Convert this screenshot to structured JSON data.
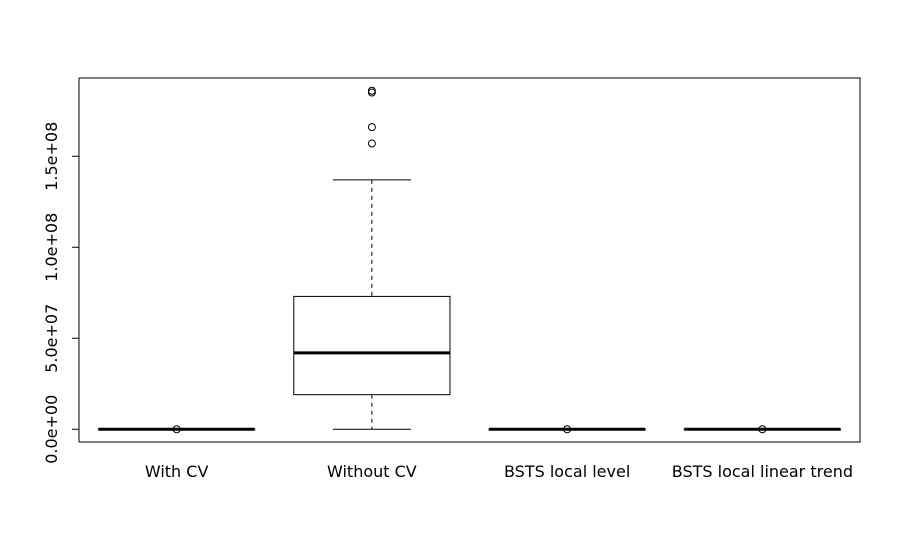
{
  "chart_data": {
    "type": "boxplot",
    "title": "",
    "xlabel": "",
    "ylabel": "",
    "ylim": [
      -7000000,
      193000000
    ],
    "y_ticks": [
      0,
      50000000,
      100000000,
      150000000
    ],
    "y_tick_labels": [
      "0.0e+00",
      "5.0e+07",
      "1.0e+08",
      "1.5e+08"
    ],
    "categories": [
      "With CV",
      "Without CV",
      "BSTS local level",
      "BSTS local linear trend"
    ],
    "boxes": [
      {
        "category": "With CV",
        "whisker_low": 0,
        "q1": 0,
        "median": 0,
        "q3": 0,
        "whisker_high": 0,
        "outliers": [
          0
        ]
      },
      {
        "category": "Without CV",
        "whisker_low": 0,
        "q1": 19000000,
        "median": 42000000,
        "q3": 73000000,
        "whisker_high": 137000000,
        "outliers": [
          157000000,
          166000000,
          185000000,
          186000000
        ]
      },
      {
        "category": "BSTS local level",
        "whisker_low": 0,
        "q1": 0,
        "median": 0,
        "q3": 0,
        "whisker_high": 0,
        "outliers": [
          0
        ]
      },
      {
        "category": "BSTS local linear trend",
        "whisker_low": 0,
        "q1": 0,
        "median": 0,
        "q3": 0,
        "whisker_high": 0,
        "outliers": [
          0
        ]
      }
    ],
    "grid": false,
    "legend": "none"
  }
}
